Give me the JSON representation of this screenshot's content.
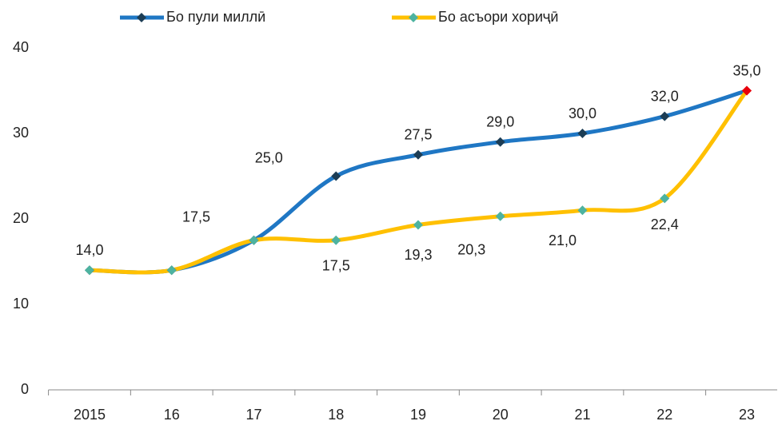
{
  "chart_data": {
    "type": "line",
    "categories": [
      "2015",
      "16",
      "17",
      "18",
      "19",
      "20",
      "21",
      "22",
      "23"
    ],
    "series": [
      {
        "name": "Бо пули миллӣ",
        "color": "#1f77c4",
        "marker_color": "#1c3d55",
        "values": [
          14.0,
          14.0,
          17.5,
          25.0,
          27.5,
          29.0,
          30.0,
          32.0,
          35.0
        ],
        "value_labels": [
          "14,0",
          null,
          "17,5",
          "25,0",
          "27,5",
          "29,0",
          "30,0",
          "32,0",
          "35,0"
        ]
      },
      {
        "name": "Бо асъори хориҷӣ",
        "color": "#ffc000",
        "marker_color": "#4db3a0",
        "values": [
          14.0,
          14.0,
          17.5,
          17.5,
          19.3,
          20.3,
          21.0,
          22.4,
          35.0
        ],
        "value_labels": [
          null,
          null,
          null,
          "17,5",
          "19,3",
          "20,3",
          "21,0",
          "22,4",
          null
        ]
      }
    ],
    "last_marker_color": "#e8000b",
    "ylim": [
      0,
      40
    ],
    "yticks": [
      0,
      10,
      20,
      30,
      40
    ],
    "grid": false,
    "legend": "top"
  }
}
